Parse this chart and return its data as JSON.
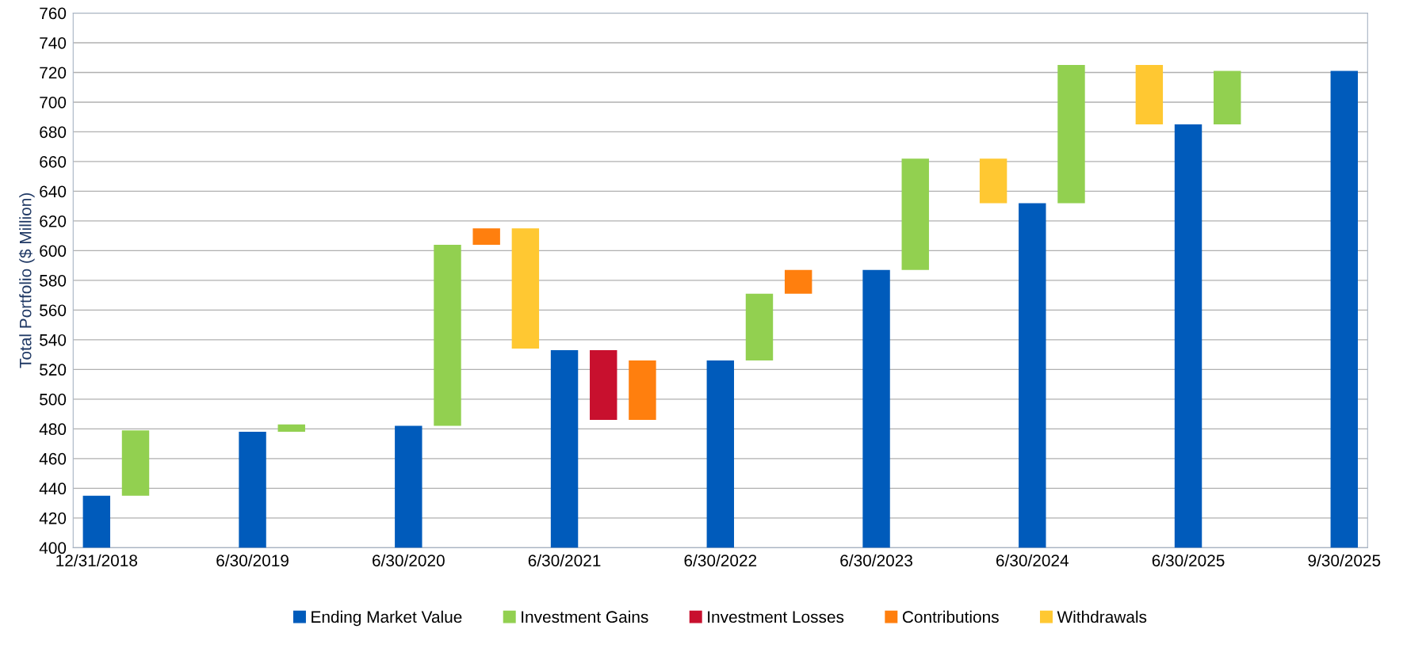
{
  "chart_data": {
    "type": "bar",
    "ylabel": "Total Portfolio ($ Million)",
    "categories": [
      "12/31/2018",
      null,
      null,
      null,
      "6/30/2019",
      null,
      null,
      null,
      "6/30/2020",
      null,
      null,
      null,
      "6/30/2021",
      null,
      null,
      null,
      "6/30/2022",
      null,
      null,
      null,
      "6/30/2023",
      null,
      null,
      null,
      "6/30/2024",
      null,
      null,
      null,
      "6/30/2025",
      null,
      null,
      null,
      "9/30/2025"
    ],
    "series": [
      {
        "name": "Ending Market Value",
        "color": "#005bbb",
        "values": [
          435,
          null,
          null,
          null,
          478,
          null,
          null,
          null,
          482,
          null,
          null,
          null,
          533,
          null,
          null,
          null,
          526,
          null,
          null,
          null,
          587,
          null,
          null,
          null,
          632,
          null,
          null,
          null,
          685,
          null,
          null,
          null,
          721
        ]
      },
      {
        "name": "Investment Gains",
        "color": "#92d050",
        "values": [
          null,
          44,
          null,
          null,
          null,
          5,
          null,
          null,
          null,
          122,
          null,
          null,
          null,
          null,
          null,
          null,
          null,
          45,
          null,
          null,
          null,
          75,
          null,
          null,
          null,
          93,
          null,
          null,
          null,
          36,
          null,
          null,
          null
        ],
        "base": [
          null,
          435,
          null,
          null,
          null,
          478,
          null,
          null,
          null,
          482,
          null,
          null,
          null,
          null,
          null,
          null,
          null,
          526,
          null,
          null,
          null,
          587,
          null,
          null,
          null,
          632,
          null,
          null,
          null,
          685,
          null,
          null,
          null
        ]
      },
      {
        "name": "Investment Losses",
        "color": "#c8102e",
        "values": [
          null,
          null,
          null,
          null,
          null,
          null,
          null,
          null,
          null,
          null,
          null,
          null,
          null,
          -47,
          null,
          null,
          null,
          null,
          null,
          null,
          null,
          null,
          null,
          null,
          null,
          null,
          null,
          null,
          null,
          null,
          null,
          null,
          null
        ],
        "base": [
          null,
          null,
          null,
          null,
          null,
          null,
          null,
          null,
          null,
          null,
          null,
          null,
          null,
          533,
          null,
          null,
          null,
          null,
          null,
          null,
          null,
          null,
          null,
          null,
          null,
          null,
          null,
          null,
          null,
          null,
          null,
          null,
          null
        ]
      },
      {
        "name": "Contributions",
        "color": "#ff7f0e",
        "values": [
          null,
          null,
          null,
          null,
          null,
          null,
          null,
          null,
          null,
          null,
          11,
          null,
          null,
          null,
          40,
          null,
          null,
          null,
          16,
          null,
          null,
          null,
          null,
          null,
          null,
          null,
          null,
          null,
          null,
          null,
          null,
          null,
          null
        ],
        "base": [
          null,
          null,
          null,
          null,
          null,
          null,
          null,
          null,
          null,
          null,
          604,
          null,
          null,
          null,
          486,
          null,
          null,
          null,
          571,
          null,
          null,
          null,
          null,
          null,
          null,
          null,
          null,
          null,
          null,
          null,
          null,
          null,
          null
        ]
      },
      {
        "name": "Withdrawals",
        "color": "#ffc832",
        "values": [
          null,
          null,
          null,
          null,
          null,
          null,
          null,
          null,
          null,
          null,
          null,
          -81,
          null,
          null,
          null,
          null,
          null,
          null,
          null,
          null,
          null,
          null,
          null,
          -30,
          null,
          null,
          null,
          -40,
          null,
          null,
          null,
          null,
          null
        ],
        "base": [
          null,
          null,
          null,
          null,
          null,
          null,
          null,
          null,
          null,
          null,
          null,
          615,
          null,
          null,
          null,
          null,
          null,
          null,
          null,
          null,
          null,
          null,
          null,
          662,
          null,
          null,
          null,
          725,
          null,
          null,
          null,
          null,
          null
        ]
      }
    ],
    "ylim": [
      400,
      760
    ],
    "yticks": [
      400,
      420,
      440,
      460,
      480,
      500,
      520,
      540,
      560,
      580,
      600,
      620,
      640,
      660,
      680,
      700,
      720,
      740,
      760
    ],
    "grid": "y",
    "legend": "bottom"
  }
}
